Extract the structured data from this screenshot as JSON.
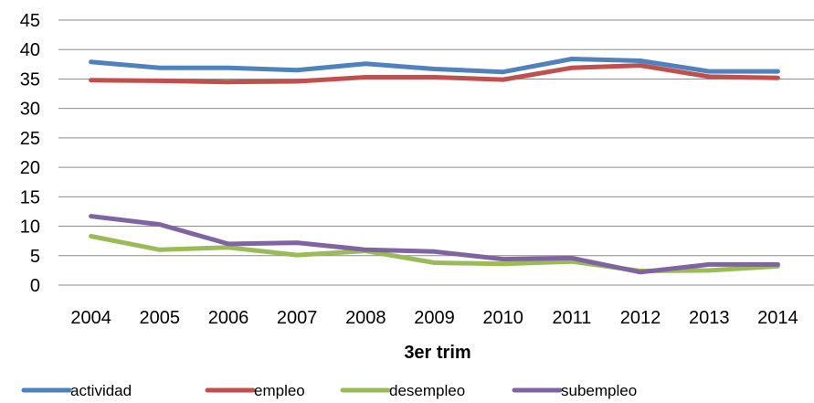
{
  "chart_data": {
    "type": "line",
    "title": "",
    "xlabel": "3er trim",
    "ylabel": "",
    "ylim": [
      0,
      45
    ],
    "yticks": [
      0,
      5,
      10,
      15,
      20,
      25,
      30,
      35,
      40,
      45
    ],
    "grid": "horizontal",
    "legend_position": "bottom",
    "categories": [
      "2004",
      "2005",
      "2006",
      "2007",
      "2008",
      "2009",
      "2010",
      "2011",
      "2012",
      "2013",
      "2014"
    ],
    "series": [
      {
        "name": "actividad",
        "color": "#4F81BD",
        "values": [
          37.9,
          36.9,
          36.9,
          36.5,
          37.6,
          36.7,
          36.2,
          38.4,
          38.1,
          36.3,
          36.3
        ]
      },
      {
        "name": "empleo",
        "color": "#C0504D",
        "values": [
          34.8,
          34.7,
          34.5,
          34.6,
          35.3,
          35.3,
          34.9,
          36.9,
          37.3,
          35.4,
          35.2
        ]
      },
      {
        "name": "desempleo",
        "color": "#9BBB59",
        "values": [
          8.3,
          6.0,
          6.4,
          5.1,
          5.8,
          3.8,
          3.6,
          4.0,
          2.4,
          2.5,
          3.2
        ]
      },
      {
        "name": "subempleo",
        "color": "#8064A2",
        "values": [
          11.7,
          10.3,
          7.0,
          7.2,
          6.0,
          5.7,
          4.4,
          4.6,
          2.2,
          3.5,
          3.5
        ]
      }
    ]
  }
}
